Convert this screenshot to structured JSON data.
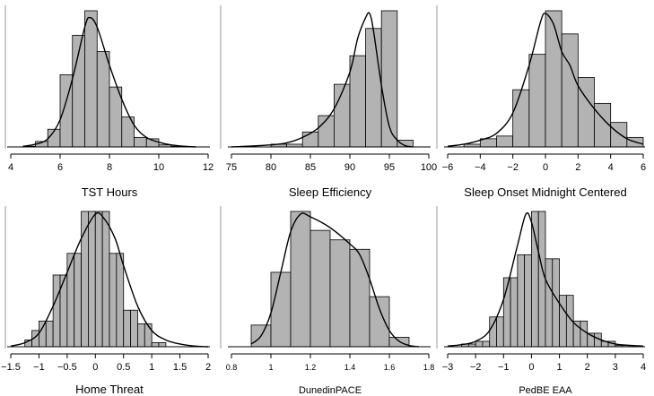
{
  "chart_data": [
    {
      "type": "bar",
      "subtype": "histogram-with-density",
      "xlabel": "TST Hours",
      "xlim": [
        4,
        12
      ],
      "ticks": [
        4,
        6,
        8,
        10,
        12
      ],
      "tick_labels": [
        "4",
        "6",
        "8",
        "10",
        "12"
      ],
      "bin_edges": [
        4.5,
        5,
        5.5,
        6,
        6.5,
        7,
        7.5,
        8,
        8.5,
        9,
        9.5,
        10,
        10.5,
        11
      ],
      "counts": [
        0.5,
        4,
        13,
        53,
        82,
        100,
        70,
        44,
        22,
        7,
        6,
        1.5,
        0.5
      ],
      "density": [
        [
          4.5,
          0.5
        ],
        [
          5,
          2
        ],
        [
          5.5,
          6
        ],
        [
          6,
          20
        ],
        [
          6.5,
          50
        ],
        [
          7,
          88
        ],
        [
          7.2,
          95
        ],
        [
          7.5,
          88
        ],
        [
          8,
          60
        ],
        [
          8.5,
          35
        ],
        [
          9,
          16
        ],
        [
          9.5,
          7
        ],
        [
          10,
          3.5
        ],
        [
          10.5,
          1.5
        ],
        [
          11,
          0.5
        ],
        [
          11.5,
          0
        ]
      ]
    },
    {
      "type": "bar",
      "subtype": "histogram-with-density",
      "xlabel": "Sleep Efficiency",
      "xlim": [
        75,
        100
      ],
      "ticks": [
        75,
        80,
        85,
        90,
        95,
        100
      ],
      "tick_labels": [
        "75",
        "80",
        "85",
        "90",
        "95",
        "100"
      ],
      "bin_edges": [
        80,
        82,
        84,
        86,
        88,
        90,
        92,
        94,
        96,
        98
      ],
      "counts": [
        2,
        2,
        11,
        23,
        46,
        67,
        87,
        100,
        5
      ],
      "density": [
        [
          75,
          0
        ],
        [
          77,
          0.5
        ],
        [
          80,
          1.5
        ],
        [
          82,
          3
        ],
        [
          84,
          7
        ],
        [
          86,
          14
        ],
        [
          88,
          28
        ],
        [
          90,
          55
        ],
        [
          91,
          80
        ],
        [
          92,
          95
        ],
        [
          92.5,
          98
        ],
        [
          93,
          85
        ],
        [
          94,
          45
        ],
        [
          95,
          15
        ],
        [
          96,
          5
        ],
        [
          97,
          1
        ],
        [
          98,
          0
        ]
      ]
    },
    {
      "type": "bar",
      "subtype": "histogram-with-density",
      "xlabel": "Sleep Onset Midnight Centered",
      "xlim": [
        -6,
        6
      ],
      "ticks": [
        -6,
        -4,
        -2,
        0,
        2,
        4,
        6
      ],
      "tick_labels": [
        "−6",
        "−4",
        "−2",
        "0",
        "2",
        "4",
        "6"
      ],
      "bin_edges": [
        -5,
        -4,
        -3,
        -2,
        -1,
        0,
        1,
        2,
        3,
        4,
        5,
        6
      ],
      "counts": [
        2,
        6,
        8,
        42,
        68,
        100,
        83,
        51,
        32,
        18,
        7
      ],
      "density": [
        [
          -6,
          0.5
        ],
        [
          -5,
          2
        ],
        [
          -4,
          5
        ],
        [
          -3,
          10
        ],
        [
          -2,
          25
        ],
        [
          -1,
          60
        ],
        [
          -0.3,
          92
        ],
        [
          0,
          98
        ],
        [
          0.5,
          90
        ],
        [
          1,
          70
        ],
        [
          1.5,
          60
        ],
        [
          2,
          45
        ],
        [
          3,
          28
        ],
        [
          4,
          15
        ],
        [
          5,
          6
        ],
        [
          6,
          2
        ]
      ]
    },
    {
      "type": "bar",
      "subtype": "histogram-with-density",
      "xlabel": "Home Threat",
      "xlim": [
        -1.5,
        2
      ],
      "ticks": [
        -1.5,
        -1,
        -0.5,
        0,
        0.5,
        1,
        1.5,
        2
      ],
      "tick_labels": [
        "−1.5",
        "−1",
        "−0.5",
        "0",
        "0.5",
        "1",
        "1.5",
        "2"
      ],
      "bin_edges": [
        -1.25,
        -1.125,
        -1.0,
        -0.875,
        -0.75,
        -0.625,
        -0.5,
        -0.375,
        -0.25,
        -0.125,
        0,
        0.125,
        0.25,
        0.375,
        0.5,
        0.625,
        0.75,
        0.875,
        1.0,
        1.125,
        1.25
      ],
      "counts": [
        5,
        12,
        19,
        19,
        53,
        53,
        69,
        69,
        100,
        100,
        100,
        100,
        69,
        69,
        27,
        27,
        17,
        17,
        3,
        3
      ],
      "density": [
        [
          -1.5,
          0.5
        ],
        [
          -1.25,
          3
        ],
        [
          -1,
          10
        ],
        [
          -0.75,
          30
        ],
        [
          -0.5,
          55
        ],
        [
          -0.25,
          80
        ],
        [
          0,
          98
        ],
        [
          0.15,
          95
        ],
        [
          0.35,
          80
        ],
        [
          0.5,
          60
        ],
        [
          0.75,
          30
        ],
        [
          1,
          12
        ],
        [
          1.25,
          5
        ],
        [
          1.5,
          2
        ],
        [
          1.75,
          0.5
        ],
        [
          2,
          0
        ]
      ]
    },
    {
      "type": "bar",
      "subtype": "histogram-with-density",
      "xlabel": "DunedinPACE",
      "xlim": [
        0.8,
        1.8
      ],
      "ticks": [
        0.8,
        1,
        1.2,
        1.4,
        1.6,
        1.8
      ],
      "tick_labels": [
        "0.8",
        "1",
        "1.2",
        "1.4",
        "1.6",
        "1.8"
      ],
      "bin_edges": [
        0.9,
        1.0,
        1.1,
        1.2,
        1.3,
        1.4,
        1.5,
        1.6,
        1.7
      ],
      "counts": [
        16,
        55,
        100,
        86,
        79,
        72,
        37,
        7
      ],
      "density": [
        [
          0.9,
          2
        ],
        [
          0.95,
          8
        ],
        [
          1.0,
          25
        ],
        [
          1.05,
          55
        ],
        [
          1.1,
          85
        ],
        [
          1.15,
          98
        ],
        [
          1.2,
          96
        ],
        [
          1.3,
          88
        ],
        [
          1.4,
          76
        ],
        [
          1.45,
          68
        ],
        [
          1.5,
          50
        ],
        [
          1.55,
          28
        ],
        [
          1.6,
          12
        ],
        [
          1.65,
          4
        ],
        [
          1.7,
          1
        ],
        [
          1.75,
          0
        ]
      ]
    },
    {
      "type": "bar",
      "subtype": "histogram-with-density",
      "xlabel": "PedBE EAA",
      "xlim": [
        -3,
        4
      ],
      "ticks": [
        -3,
        -2,
        -1,
        0,
        1,
        2,
        3,
        4
      ],
      "tick_labels": [
        "−3",
        "−2",
        "−1",
        "0",
        "1",
        "2",
        "3",
        "4"
      ],
      "bin_edges": [
        -2.5,
        -2.25,
        -2.0,
        -1.75,
        -1.5,
        -1.25,
        -1.0,
        -0.75,
        -0.5,
        -0.25,
        0,
        0.25,
        0.5,
        0.75,
        1.0,
        1.25,
        1.5,
        1.75,
        2.0,
        2.25,
        2.5,
        2.75,
        3.0,
        3.25,
        3.5
      ],
      "counts": [
        2,
        2,
        4,
        4,
        22,
        22,
        51,
        51,
        68,
        68,
        100,
        100,
        65,
        65,
        38,
        38,
        19,
        19,
        10,
        10,
        4,
        4,
        1,
        1
      ],
      "density": [
        [
          -3,
          0.5
        ],
        [
          -2.5,
          1.5
        ],
        [
          -2,
          4
        ],
        [
          -1.5,
          12
        ],
        [
          -1,
          35
        ],
        [
          -0.5,
          75
        ],
        [
          -0.2,
          98
        ],
        [
          0,
          92
        ],
        [
          0.25,
          70
        ],
        [
          0.5,
          50
        ],
        [
          1,
          32
        ],
        [
          1.5,
          18
        ],
        [
          2,
          10
        ],
        [
          2.5,
          5
        ],
        [
          3,
          2
        ],
        [
          3.5,
          1
        ],
        [
          4,
          0.5
        ]
      ]
    }
  ]
}
